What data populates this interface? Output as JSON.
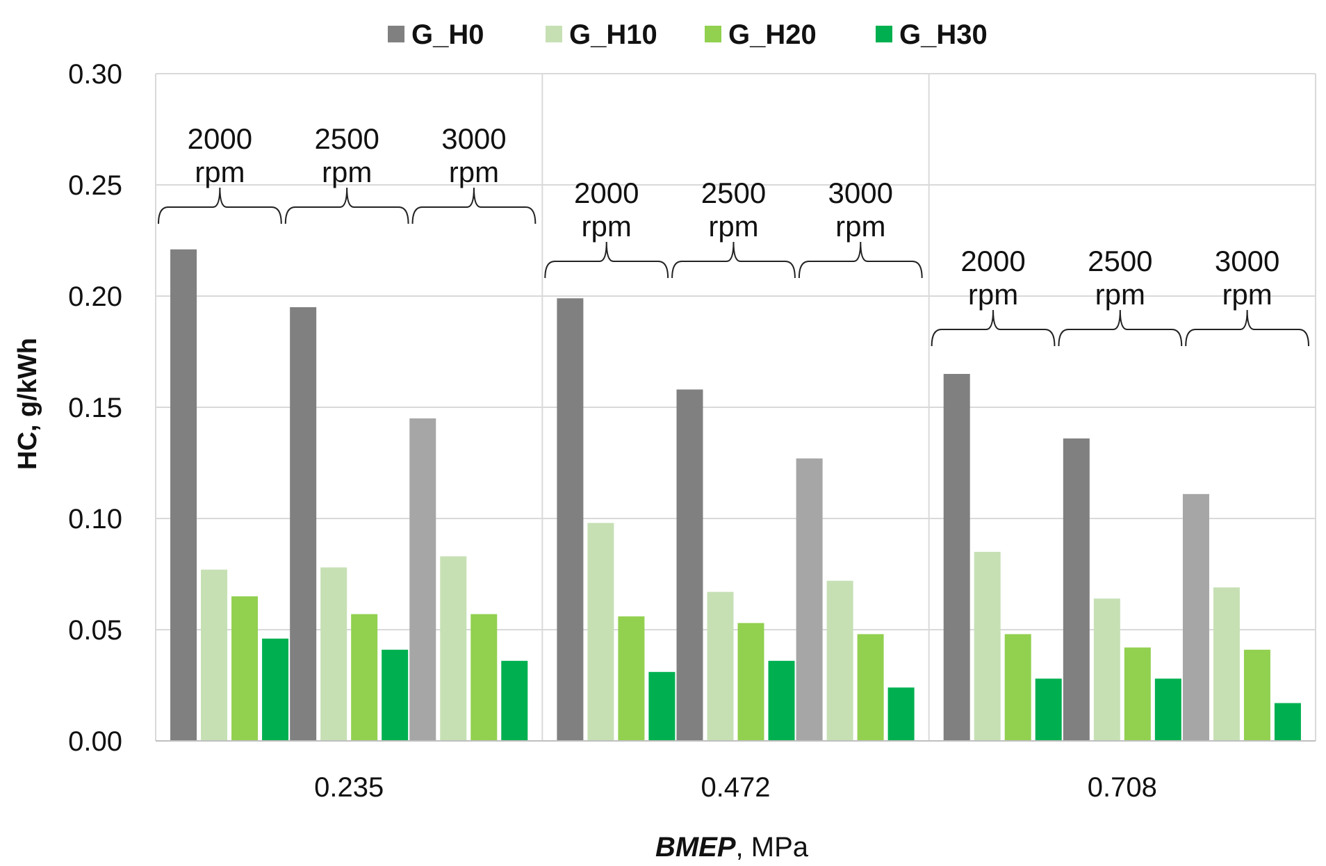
{
  "chart_data": {
    "type": "bar",
    "title": "",
    "ylabel": "HC, g/kWh",
    "xlabel_italic": "BMEP",
    "xlabel_rest": ", MPa",
    "ylim": [
      0,
      0.3
    ],
    "yticks": [
      "0.00",
      "0.05",
      "0.10",
      "0.15",
      "0.20",
      "0.25",
      "0.30"
    ],
    "grid": true,
    "legend_position": "top",
    "categories": [
      "0.235",
      "0.472",
      "0.708"
    ],
    "speed_unit": "rpm",
    "speeds": [
      "2000",
      "2500",
      "3000"
    ],
    "series_names": [
      "G_H0",
      "G_H10",
      "G_H20",
      "G_H30"
    ],
    "series_colors": [
      "#808080",
      "#c6e0b4",
      "#92d050",
      "#00b050"
    ],
    "h0_color_3000rpm": "#a6a6a6",
    "groups": [
      {
        "bmep": "0.235",
        "speeds": [
          {
            "rpm": "2000",
            "values": [
              0.221,
              0.077,
              0.065,
              0.046
            ]
          },
          {
            "rpm": "2500",
            "values": [
              0.195,
              0.078,
              0.057,
              0.041
            ]
          },
          {
            "rpm": "3000",
            "values": [
              0.145,
              0.083,
              0.057,
              0.036
            ]
          }
        ]
      },
      {
        "bmep": "0.472",
        "speeds": [
          {
            "rpm": "2000",
            "values": [
              0.199,
              0.098,
              0.056,
              0.031
            ]
          },
          {
            "rpm": "2500",
            "values": [
              0.158,
              0.067,
              0.053,
              0.036
            ]
          },
          {
            "rpm": "3000",
            "values": [
              0.127,
              0.072,
              0.048,
              0.024
            ]
          }
        ]
      },
      {
        "bmep": "0.708",
        "speeds": [
          {
            "rpm": "2000",
            "values": [
              0.165,
              0.085,
              0.048,
              0.028
            ]
          },
          {
            "rpm": "2500",
            "values": [
              0.136,
              0.064,
              0.042,
              0.028
            ]
          },
          {
            "rpm": "3000",
            "values": [
              0.111,
              0.069,
              0.041,
              0.017
            ]
          }
        ]
      }
    ]
  }
}
